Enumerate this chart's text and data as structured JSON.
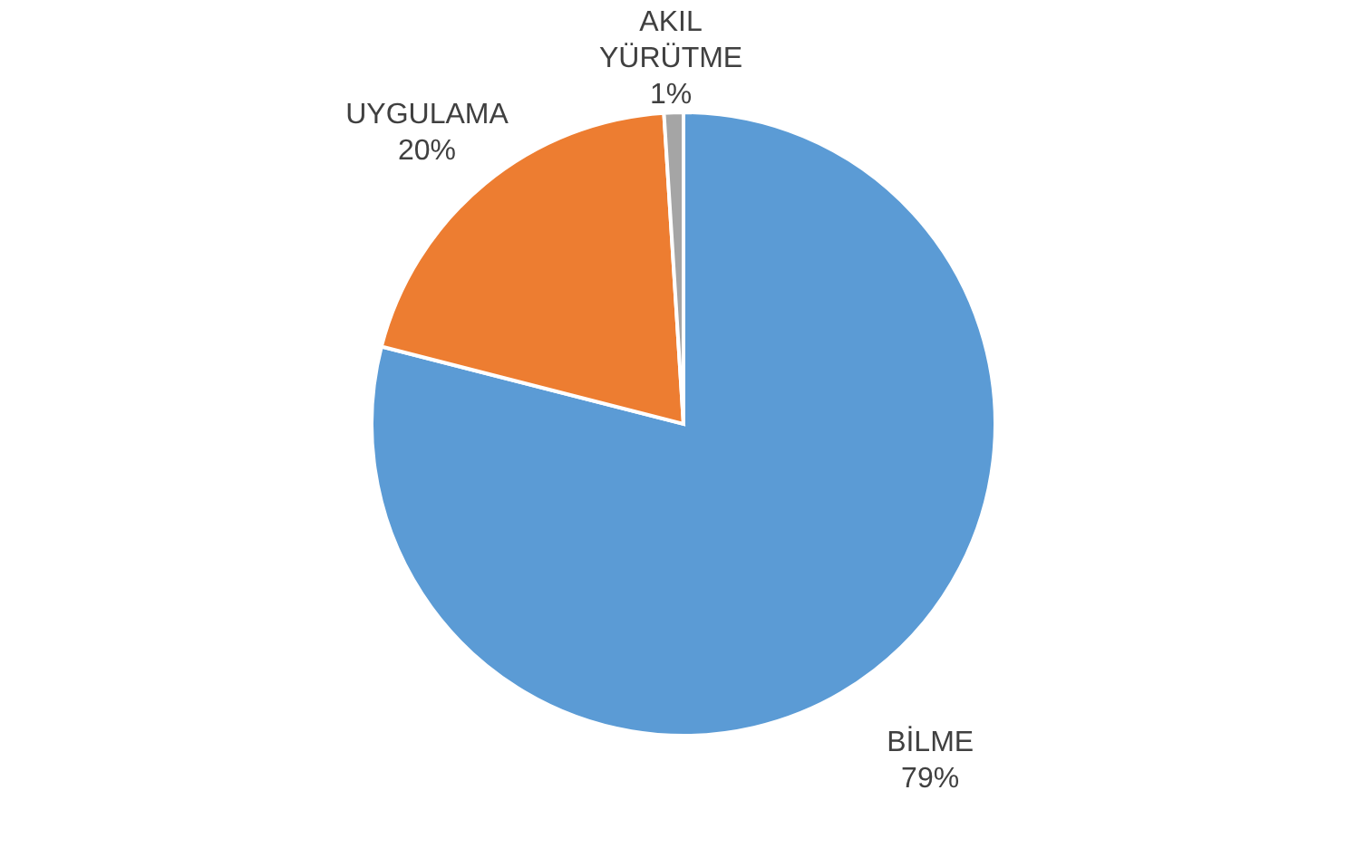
{
  "chart_data": {
    "type": "pie",
    "categories": [
      "BİLME",
      "UYGULAMA",
      "AKIL YÜRÜTME"
    ],
    "values": [
      79,
      20,
      1
    ],
    "colors": [
      "#5b9bd5",
      "#ed7d31",
      "#a5a5a5"
    ],
    "value_labels": [
      "79%",
      "20%",
      "1%"
    ]
  }
}
